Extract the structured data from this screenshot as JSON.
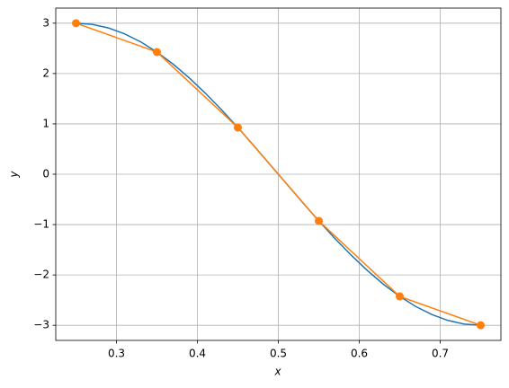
{
  "chart_data": {
    "type": "line",
    "xlabel": "x",
    "ylabel": "y",
    "xlim": [
      0.225,
      0.775
    ],
    "ylim": [
      -3.3,
      3.3
    ],
    "xticks": [
      0.3,
      0.4,
      0.5,
      0.6,
      0.7
    ],
    "yticks": [
      {
        "value": -3,
        "label": "−3"
      },
      {
        "value": -2,
        "label": "−2"
      },
      {
        "value": -1,
        "label": "−1"
      },
      0,
      1,
      2,
      3
    ],
    "grid": true,
    "series": [
      {
        "color": "#1f77b4",
        "marker": false,
        "x": [
          0.25,
          0.27,
          0.29,
          0.31,
          0.33,
          0.35,
          0.37,
          0.39,
          0.41,
          0.43,
          0.45,
          0.47,
          0.49,
          0.51,
          0.53,
          0.55,
          0.57,
          0.59,
          0.61,
          0.63,
          0.65,
          0.67,
          0.69,
          0.71,
          0.73,
          0.75
        ],
        "values": [
          3,
          2.976,
          2.906,
          2.789,
          2.629,
          2.427,
          2.187,
          1.912,
          1.607,
          1.277,
          0.927,
          0.562,
          0.188,
          -0.188,
          -0.562,
          -0.927,
          -1.277,
          -1.607,
          -1.912,
          -2.187,
          -2.427,
          -2.629,
          -2.789,
          -2.906,
          -2.976,
          -3
        ]
      },
      {
        "color": "#ff7f0e",
        "marker": true,
        "x": [
          0.25,
          0.35,
          0.45,
          0.55,
          0.65,
          0.75
        ],
        "values": [
          3,
          2.427,
          0.927,
          -0.927,
          -2.427,
          -3
        ]
      }
    ]
  }
}
